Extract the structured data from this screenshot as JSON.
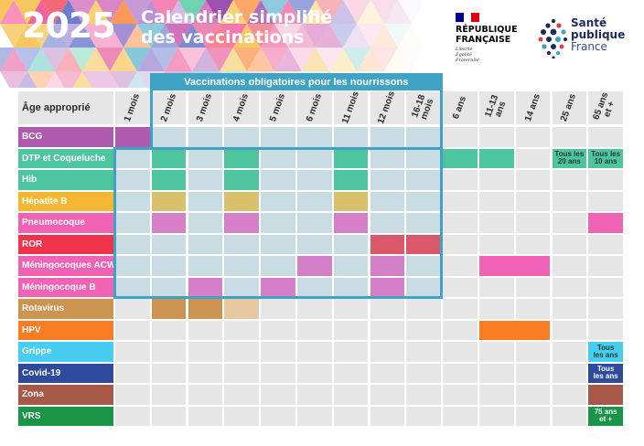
{
  "header": {
    "year": "2025",
    "title_lines": [
      "Calendrier simplifié",
      "des vaccinations"
    ]
  },
  "logos": {
    "republique": {
      "flag_colors": [
        "#000091",
        "#ffffff",
        "#e1000f"
      ],
      "name_lines": [
        "RÉPUBLIQUE",
        "FRANÇAISE"
      ],
      "motto_lines": [
        "Liberté",
        "Égalité",
        "Fraternité"
      ]
    },
    "sante_publique": {
      "lines": [
        "Santé",
        "publique",
        "France"
      ],
      "dot_colors": [
        "#1d2a5c",
        "#e63946",
        "#3fa3c6"
      ]
    }
  },
  "table": {
    "corner_label": "Âge approprié",
    "mandatory_title": "Vaccinations obligatoires pour les nourrissons",
    "ages": [
      [
        "1 mois"
      ],
      [
        "2 mois"
      ],
      [
        "3 mois"
      ],
      [
        "4 mois"
      ],
      [
        "5 mois"
      ],
      [
        "6 mois"
      ],
      [
        "11 mois"
      ],
      [
        "12 mois"
      ],
      [
        "16-18",
        "mois"
      ],
      [
        "6 ans"
      ],
      [
        "11-13",
        "ans"
      ],
      [
        "14 ans"
      ],
      [
        "25 ans"
      ],
      [
        "65 ans",
        "et +"
      ]
    ],
    "vaccines": [
      {
        "name": "BCG",
        "color": "#b05aaf",
        "mandatory": false
      },
      {
        "name": "DTP et Coqueluche",
        "color": "#4dc6a0",
        "mandatory": true
      },
      {
        "name": "Hib",
        "color": "#4dc6a0",
        "mandatory": true
      },
      {
        "name": "Hépatite B",
        "color": "#f5b731",
        "mandatory": true
      },
      {
        "name": "Pneumocoque",
        "color": "#f062b3",
        "mandatory": true
      },
      {
        "name": "ROR",
        "color": "#f0334a",
        "mandatory": true
      },
      {
        "name": "Méningocoques ACWY",
        "color": "#f062b3",
        "mandatory": true
      },
      {
        "name": "Méningocoque B",
        "color": "#f062b3",
        "mandatory": true
      },
      {
        "name": "Rotavirus",
        "color": "#cc9450",
        "mandatory": false
      },
      {
        "name": "HPV",
        "color": "#fa7c25",
        "mandatory": false
      },
      {
        "name": "Grippe",
        "color": "#46cdf0",
        "mandatory": false
      },
      {
        "name": "Covid-19",
        "color": "#2d4a9c",
        "mandatory": false
      },
      {
        "name": "Zona",
        "color": "#a85848",
        "mandatory": false
      },
      {
        "name": "VRS",
        "color": "#1a9548",
        "mandatory": false
      }
    ],
    "doses": [
      {
        "row": 0,
        "start": 0,
        "span": 1,
        "color": "#b05aaf"
      },
      {
        "row": 1,
        "start": 1,
        "span": 1,
        "color": "#4dc6a0"
      },
      {
        "row": 1,
        "start": 3,
        "span": 1,
        "color": "#4dc6a0"
      },
      {
        "row": 1,
        "start": 6,
        "span": 1,
        "color": "#4dc6a0"
      },
      {
        "row": 1,
        "start": 9,
        "span": 1,
        "color": "#4dc6a0"
      },
      {
        "row": 1,
        "start": 10,
        "span": 1,
        "color": "#4dc6a0"
      },
      {
        "row": 1,
        "start": 12,
        "span": 1,
        "color": "#4dc6a0",
        "note": [
          "Tous les",
          "20 ans"
        ],
        "note_dark": true
      },
      {
        "row": 1,
        "start": 13,
        "span": 1,
        "color": "#4dc6a0",
        "note": [
          "Tous les",
          "10 ans"
        ],
        "note_dark": true
      },
      {
        "row": 2,
        "start": 1,
        "span": 1,
        "color": "#4dc6a0"
      },
      {
        "row": 2,
        "start": 3,
        "span": 1,
        "color": "#4dc6a0"
      },
      {
        "row": 2,
        "start": 6,
        "span": 1,
        "color": "#4dc6a0"
      },
      {
        "row": 3,
        "start": 1,
        "span": 1,
        "color": "#d9c06a"
      },
      {
        "row": 3,
        "start": 3,
        "span": 1,
        "color": "#d9c06a"
      },
      {
        "row": 3,
        "start": 6,
        "span": 1,
        "color": "#d9c06a"
      },
      {
        "row": 4,
        "start": 1,
        "span": 1,
        "color": "#d57fc8"
      },
      {
        "row": 4,
        "start": 3,
        "span": 1,
        "color": "#d57fc8"
      },
      {
        "row": 4,
        "start": 6,
        "span": 1,
        "color": "#d57fc8"
      },
      {
        "row": 4,
        "start": 13,
        "span": 1,
        "color": "#f062b3"
      },
      {
        "row": 5,
        "start": 7,
        "span": 1,
        "color": "#d9596a"
      },
      {
        "row": 5,
        "start": 8,
        "span": 1,
        "color": "#d9596a"
      },
      {
        "row": 6,
        "start": 5,
        "span": 1,
        "color": "#d57fc8"
      },
      {
        "row": 6,
        "start": 7,
        "span": 1,
        "color": "#d57fc8"
      },
      {
        "row": 6,
        "start": 10,
        "span": 2,
        "color": "#f062b3"
      },
      {
        "row": 7,
        "start": 2,
        "span": 1,
        "color": "#d57fc8"
      },
      {
        "row": 7,
        "start": 4,
        "span": 1,
        "color": "#d57fc8"
      },
      {
        "row": 7,
        "start": 7,
        "span": 1,
        "color": "#d57fc8"
      },
      {
        "row": 8,
        "start": 1,
        "span": 1,
        "color": "#cc9450"
      },
      {
        "row": 8,
        "start": 2,
        "span": 1,
        "color": "#cc9450"
      },
      {
        "row": 8,
        "start": 3,
        "span": 1,
        "color": "#e8c8a0"
      },
      {
        "row": 9,
        "start": 10,
        "span": 2,
        "color": "#fa7c25"
      },
      {
        "row": 10,
        "start": 13,
        "span": 1,
        "color": "#46cdf0",
        "note": [
          "Tous",
          "les ans"
        ],
        "note_dark": true
      },
      {
        "row": 11,
        "start": 13,
        "span": 1,
        "color": "#2d4a9c",
        "note": [
          "Tous",
          "les ans"
        ],
        "note_dark": false
      },
      {
        "row": 12,
        "start": 13,
        "span": 1,
        "color": "#a85848"
      },
      {
        "row": 13,
        "start": 13,
        "span": 1,
        "color": "#1a9548",
        "note": [
          "75 ans",
          "et +"
        ],
        "note_dark": false
      }
    ]
  }
}
